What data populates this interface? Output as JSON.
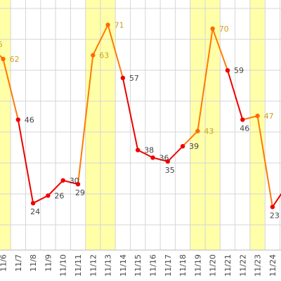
{
  "chart_data": {
    "type": "line",
    "title": "",
    "xlabel": "",
    "ylabel": "",
    "categories": [
      "11/6",
      "11/7",
      "11/8",
      "11/9",
      "11/10",
      "11/11",
      "11/12",
      "11/13",
      "11/14",
      "11/15",
      "11/16",
      "11/17",
      "11/18",
      "11/19",
      "11/20",
      "11/21",
      "11/22",
      "11/23",
      "11/24"
    ],
    "values": [
      62,
      46,
      24,
      26,
      30,
      29,
      63,
      71,
      57,
      38,
      36,
      35,
      39,
      43,
      70,
      59,
      46,
      47,
      23
    ],
    "leading_value_label": "5",
    "highlighted_categories": [
      "11/6",
      "11/12",
      "11/13",
      "11/19",
      "11/20",
      "11/23"
    ],
    "highlighted_label_color": "#c8a020",
    "normal_label_color": "#444444",
    "line_color": "#ee0000",
    "highlighted_line_color": "#ff7a00",
    "marker_color": "#ee0000",
    "highlighted_marker_color": "#ff6a00",
    "highlight_band_color": "#ffffa8",
    "grid": true,
    "legend": "none"
  }
}
